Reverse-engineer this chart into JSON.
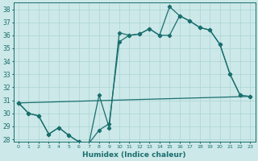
{
  "xlabel": "Humidex (Indice chaleur)",
  "xlim": [
    -0.5,
    23.5
  ],
  "ylim": [
    27.8,
    38.5
  ],
  "yticks": [
    28,
    29,
    30,
    31,
    32,
    33,
    34,
    35,
    36,
    37,
    38
  ],
  "xticks": [
    0,
    1,
    2,
    3,
    4,
    5,
    6,
    7,
    8,
    9,
    10,
    11,
    12,
    13,
    14,
    15,
    16,
    17,
    18,
    19,
    20,
    21,
    22,
    23
  ],
  "bg_color": "#cce8e8",
  "grid_color": "#aad4d4",
  "line_color": "#1a6e6e",
  "line1_x": [
    0,
    1,
    2,
    3,
    4,
    5,
    6,
    7,
    8,
    9,
    10,
    11,
    12,
    13,
    14,
    15,
    16,
    17,
    18,
    19,
    20,
    21,
    22
  ],
  "line1_y": [
    30.8,
    30.0,
    29.8,
    28.4,
    28.9,
    28.3,
    27.8,
    27.7,
    31.4,
    28.9,
    36.2,
    36.0,
    36.1,
    36.5,
    36.0,
    38.2,
    37.5,
    37.1,
    36.6,
    36.4,
    35.3,
    33.0,
    31.4
  ],
  "line2_x": [
    0,
    1,
    2,
    3,
    4,
    5,
    6,
    7,
    8,
    9,
    10,
    11,
    12,
    13,
    14,
    15,
    16,
    17,
    18,
    19,
    20,
    21,
    22,
    23
  ],
  "line2_y": [
    30.8,
    30.0,
    29.8,
    28.4,
    28.9,
    28.3,
    27.8,
    27.7,
    28.7,
    29.2,
    35.5,
    36.0,
    36.1,
    36.5,
    36.0,
    36.0,
    37.5,
    37.1,
    36.6,
    36.4,
    35.3,
    33.0,
    31.4,
    31.3
  ],
  "line3_x": [
    0,
    23
  ],
  "line3_y": [
    30.8,
    31.3
  ]
}
